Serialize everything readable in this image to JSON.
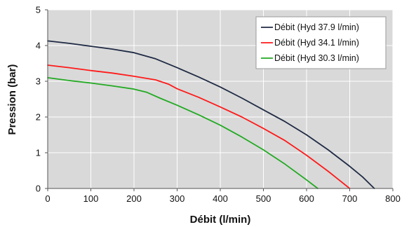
{
  "chart_data": {
    "type": "line",
    "title": "",
    "xlabel": "Débit (l/min)",
    "ylabel": "Pression (bar)",
    "xlim": [
      0,
      800
    ],
    "ylim": [
      0,
      5
    ],
    "xticks": [
      0,
      100,
      200,
      300,
      400,
      500,
      600,
      700,
      800
    ],
    "yticks": [
      0,
      1,
      2,
      3,
      4,
      5
    ],
    "grid": true,
    "legend_position": "top-right",
    "plot_background": "#d9d9d9",
    "series": [
      {
        "name": "Débit (Hyd 37.9 l/min)",
        "color": "#1f2a44",
        "x": [
          0,
          50,
          100,
          150,
          200,
          250,
          300,
          350,
          400,
          450,
          500,
          550,
          600,
          650,
          700,
          730,
          757
        ],
        "y": [
          4.13,
          4.06,
          3.98,
          3.9,
          3.8,
          3.63,
          3.38,
          3.12,
          2.84,
          2.53,
          2.2,
          1.87,
          1.5,
          1.08,
          0.62,
          0.32,
          0.0
        ]
      },
      {
        "name": "Débit (Hyd 34.1 l/min)",
        "color": "#ff1a1a",
        "x": [
          0,
          50,
          100,
          150,
          200,
          250,
          280,
          300,
          350,
          400,
          450,
          500,
          550,
          600,
          650,
          700
        ],
        "y": [
          3.45,
          3.38,
          3.3,
          3.23,
          3.14,
          3.04,
          2.92,
          2.79,
          2.55,
          2.28,
          2.0,
          1.68,
          1.34,
          0.93,
          0.48,
          0.0
        ]
      },
      {
        "name": "Débit (Hyd 30.3 l/min)",
        "color": "#22aa22",
        "x": [
          0,
          50,
          100,
          150,
          200,
          230,
          260,
          300,
          350,
          400,
          450,
          500,
          550,
          600,
          626
        ],
        "y": [
          3.1,
          3.02,
          2.95,
          2.87,
          2.78,
          2.69,
          2.53,
          2.33,
          2.06,
          1.77,
          1.44,
          1.08,
          0.68,
          0.24,
          0.0
        ]
      }
    ]
  }
}
